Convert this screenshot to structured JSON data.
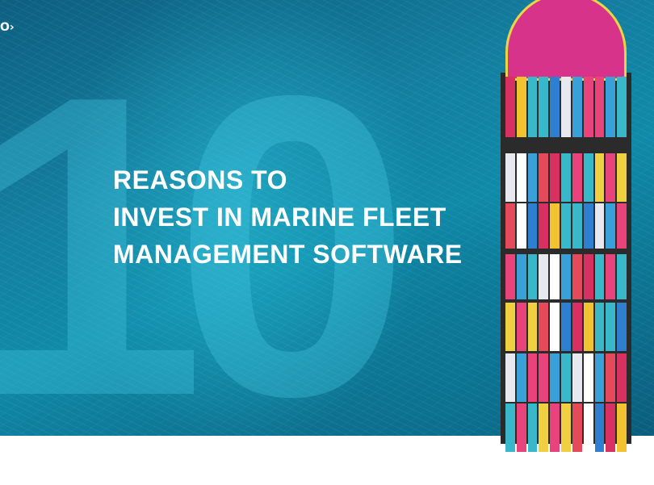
{
  "logo": {
    "text": "O›"
  },
  "hero": {
    "big_number": "10",
    "title_lines": [
      "REASONS TO",
      "INVEST IN MARINE FLEET",
      "MANAGEMENT SOFTWARE"
    ]
  },
  "colors": {
    "ocean": "#137fa0",
    "bow": "#d8338a",
    "containers": [
      "#e8e8f0",
      "#3aa0d8",
      "#f2c230",
      "#e54a5a",
      "#e8437a",
      "#38b8c8",
      "#f0d040",
      "#2f7fd0",
      "#d83060",
      "#ffffff"
    ]
  }
}
